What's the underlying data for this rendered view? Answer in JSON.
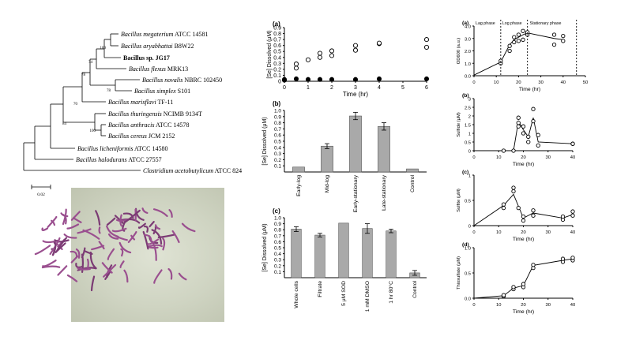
{
  "tree": {
    "taxa": [
      {
        "name": "Bacillus megaterium",
        "strain": "ATCC 14581",
        "bold": false
      },
      {
        "name": "Bacillus aryabhattai",
        "strain": "B8W22",
        "bold": false
      },
      {
        "name": "Bacillus sp. JG17",
        "strain": "",
        "bold": true
      },
      {
        "name": "Bacillus flexus",
        "strain": "MRK13",
        "bold": false
      },
      {
        "name": "Bacillus novalis",
        "strain": "NBRC 102450",
        "bold": false
      },
      {
        "name": "Bacillus simplex",
        "strain": "S101",
        "bold": false
      },
      {
        "name": "Bacillus marisflavi",
        "strain": "TF-11",
        "bold": false
      },
      {
        "name": "Bacillus thuringensis",
        "strain": "NCIMB 9134T",
        "bold": false
      },
      {
        "name": "Bacillus anthracis",
        "strain": "ATCC 14578",
        "bold": false
      },
      {
        "name": "Bacillus cereus",
        "strain": "JCM 2152",
        "bold": false
      },
      {
        "name": "Bacillus licheniformis",
        "strain": "ATCC 14580",
        "bold": false
      },
      {
        "name": "Bacillus halodurans",
        "strain": "ATCC 27557",
        "bold": false
      },
      {
        "name": "Clostridium acetobutylicum",
        "strain": "ATCC 824",
        "bold": false
      }
    ],
    "bootstrap": [
      "100",
      "74",
      "78",
      "78",
      "70",
      "100",
      "84"
    ],
    "scale": "0.02"
  },
  "chart_data": [
    {
      "id": "a-mid",
      "type": "scatter",
      "panel_label": "(a)",
      "xlabel": "Time (hr)",
      "ylabel": "[Se] Dissolved (μM)",
      "xlim": [
        0,
        6
      ],
      "ylim": [
        0,
        0.9
      ],
      "xticks": [
        "0",
        "1",
        "2",
        "3",
        "4",
        "5",
        "6"
      ],
      "yticks": [
        "0",
        "0.1",
        "0.2",
        "0.3",
        "0.4",
        "0.5",
        "0.6",
        "0.7",
        "0.8",
        "0.9"
      ],
      "series": [
        {
          "marker": "open",
          "x": [
            0,
            0,
            0.5,
            0.5,
            1,
            1.5,
            1.5,
            2,
            2,
            3,
            3,
            4,
            4,
            6,
            6
          ],
          "y": [
            0.02,
            0.02,
            0.22,
            0.29,
            0.36,
            0.4,
            0.47,
            0.43,
            0.51,
            0.52,
            0.6,
            0.63,
            0.64,
            0.57,
            0.7
          ]
        },
        {
          "marker": "filled",
          "x": [
            0,
            0.5,
            1,
            1.5,
            2,
            3,
            4,
            6
          ],
          "y": [
            0.03,
            0.04,
            0.03,
            0.03,
            0.03,
            0.03,
            0.04,
            0.04
          ]
        }
      ]
    },
    {
      "id": "b-mid",
      "type": "bar",
      "panel_label": "(b)",
      "ylabel": "[Se] Dissolved (μM)",
      "ylim": [
        0,
        1.0
      ],
      "yticks": [
        "0.1",
        "0.2",
        "0.3",
        "0.4",
        "0.5",
        "0.6",
        "0.7",
        "0.8",
        "0.9",
        "1.0"
      ],
      "categories": [
        "Early-log",
        "Mid-log",
        "Early-stationary",
        "Late-stationary",
        "Control"
      ],
      "values": [
        0.08,
        0.42,
        0.91,
        0.74,
        0.05
      ],
      "errors": [
        0,
        0.04,
        0.06,
        0.06,
        0
      ]
    },
    {
      "id": "c-mid",
      "type": "bar",
      "panel_label": "(c)",
      "ylabel": "[Se] Dissolved (μM)",
      "ylim": [
        0,
        1.0
      ],
      "yticks": [
        "0.1",
        "0.2",
        "0.3",
        "0.4",
        "0.5",
        "0.6",
        "0.7",
        "0.8",
        "0.9",
        "1.0"
      ],
      "categories": [
        "Whole cells",
        "Filtrate",
        "5 μM SOD",
        "1 mM DMSO",
        "1 hr 80°C",
        "Control"
      ],
      "values": [
        0.81,
        0.71,
        0.91,
        0.82,
        0.78,
        0.08
      ],
      "errors": [
        0.04,
        0.03,
        0,
        0.08,
        0.03,
        0.04
      ]
    },
    {
      "id": "a-right",
      "type": "line",
      "panel_label": "(a)",
      "xlabel": "Time (hr)",
      "ylabel": "OD600 (a.u.)",
      "xlim": [
        0,
        50
      ],
      "ylim": [
        0,
        4.0
      ],
      "xticks": [
        "0",
        "10",
        "20",
        "30",
        "40",
        "50"
      ],
      "yticks": [
        "0.0",
        "1.0",
        "2.0",
        "3.0",
        "4.0"
      ],
      "phases": [
        "Lag phase",
        "Log phase",
        "Stationary phase"
      ],
      "phase_bounds": [
        12,
        24,
        46
      ],
      "line": {
        "x": [
          0,
          12,
          16,
          18,
          20,
          22,
          24,
          36,
          40
        ],
        "y": [
          0.05,
          1.1,
          2.5,
          2.9,
          3.1,
          3.3,
          3.45,
          3.0,
          2.9
        ]
      },
      "points": {
        "x": [
          12,
          12,
          16,
          16,
          18,
          18,
          20,
          20,
          22,
          22,
          24,
          24,
          36,
          36,
          40,
          40
        ],
        "y": [
          1.0,
          1.2,
          2.0,
          2.4,
          2.7,
          3.1,
          2.8,
          3.3,
          2.9,
          3.6,
          3.3,
          3.5,
          2.5,
          3.3,
          2.8,
          3.2
        ]
      }
    },
    {
      "id": "b-right",
      "type": "line",
      "panel_label": "(b)",
      "xlabel": "Time (hr)",
      "ylabel": "Sulfide (μM)",
      "xlim": [
        0,
        40
      ],
      "ylim": [
        0,
        3.0
      ],
      "xticks": [
        "0",
        "10",
        "20",
        "30",
        "40"
      ],
      "yticks": [
        "0",
        "0.5",
        "1",
        "1.5",
        "2",
        "2.5",
        "3"
      ],
      "line": {
        "x": [
          0,
          16,
          18,
          20,
          22,
          24,
          26,
          40
        ],
        "y": [
          0,
          0,
          1.7,
          1.2,
          0.8,
          1.9,
          0.5,
          0.4
        ]
      },
      "points": {
        "x": [
          12,
          16,
          18,
          18,
          18,
          20,
          20,
          22,
          22,
          24,
          24,
          26,
          26,
          40,
          40
        ],
        "y": [
          0,
          0,
          1.9,
          1.6,
          1.4,
          1.4,
          1.0,
          0.8,
          0.5,
          2.4,
          1.7,
          0.9,
          0.3,
          0.4,
          0.4
        ]
      }
    },
    {
      "id": "c-right",
      "type": "line",
      "panel_label": "(c)",
      "xlabel": "Time (hr)",
      "ylabel": "Sulfite (μM)",
      "xlim": [
        0,
        40
      ],
      "ylim": [
        0,
        1.0
      ],
      "xticks": [
        "0",
        "10",
        "20",
        "30",
        "40"
      ],
      "yticks": [
        "0",
        "0.5",
        "1"
      ],
      "line": {
        "x": [
          0,
          12,
          16,
          20,
          24,
          36,
          40
        ],
        "y": [
          0,
          0.4,
          0.62,
          0.15,
          0.25,
          0.15,
          0.22
        ]
      },
      "points": {
        "x": [
          12,
          12,
          16,
          16,
          18,
          20,
          20,
          24,
          24,
          36,
          36,
          40,
          40
        ],
        "y": [
          0.35,
          0.42,
          0.75,
          0.68,
          0.35,
          0.18,
          0.1,
          0.3,
          0.2,
          0.12,
          0.18,
          0.2,
          0.28
        ]
      }
    },
    {
      "id": "d-right",
      "type": "line",
      "panel_label": "(d)",
      "xlabel": "Time (hr)",
      "ylabel": "Thiosulfate (μM)",
      "xlim": [
        0,
        40
      ],
      "ylim": [
        0,
        1.0
      ],
      "xticks": [
        "0",
        "10",
        "20",
        "30",
        "40"
      ],
      "yticks": [
        "0.0",
        "0.5",
        "1.0"
      ],
      "line": {
        "x": [
          0,
          12,
          16,
          20,
          24,
          36,
          40
        ],
        "y": [
          0,
          0.05,
          0.2,
          0.25,
          0.65,
          0.75,
          0.78
        ]
      },
      "points": {
        "x": [
          12,
          12,
          16,
          16,
          20,
          20,
          24,
          24,
          36,
          36,
          40,
          40
        ],
        "y": [
          0.04,
          0.06,
          0.18,
          0.22,
          0.22,
          0.28,
          0.6,
          0.66,
          0.72,
          0.78,
          0.75,
          0.8
        ]
      }
    }
  ]
}
